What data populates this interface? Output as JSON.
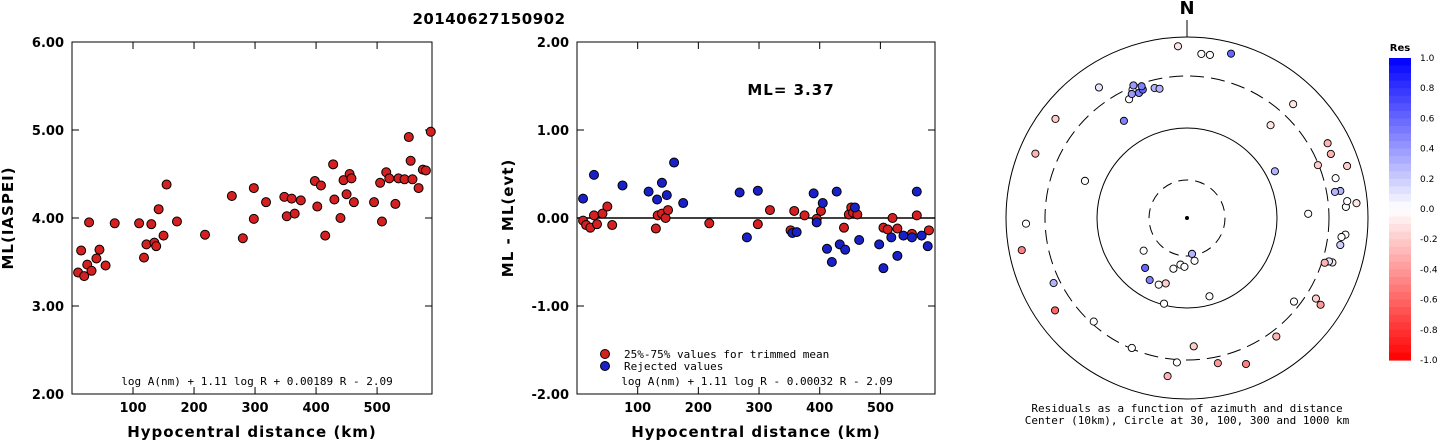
{
  "title": "20140627150902",
  "colors": {
    "red": "#d42020",
    "blue": "#1a20c8",
    "axis": "#000000"
  },
  "chart_data": [
    {
      "type": "scatter",
      "xlabel": "Hypocentral distance (km)",
      "ylabel": "ML(IASPEI)",
      "xlim": [
        0,
        590
      ],
      "ylim": [
        2.0,
        6.0
      ],
      "x_ticks": [
        "100",
        "200",
        "300",
        "400",
        "500"
      ],
      "y_ticks": [
        "2.00",
        "3.00",
        "4.00",
        "5.00",
        "6.00"
      ],
      "formula": "log A(nm) + 1.11 log R + 0.00189 R - 2.09",
      "series": [
        {
          "color": "red",
          "points": [
            [
              10,
              3.38
            ],
            [
              15,
              3.63
            ],
            [
              20,
              3.34
            ],
            [
              25,
              3.47
            ],
            [
              28,
              3.95
            ],
            [
              32,
              3.4
            ],
            [
              40,
              3.54
            ],
            [
              45,
              3.64
            ],
            [
              55,
              3.46
            ],
            [
              70,
              3.94
            ],
            [
              110,
              3.94
            ],
            [
              118,
              3.55
            ],
            [
              122,
              3.7
            ],
            [
              130,
              3.93
            ],
            [
              135,
              3.72
            ],
            [
              138,
              3.68
            ],
            [
              142,
              4.1
            ],
            [
              150,
              3.8
            ],
            [
              155,
              4.38
            ],
            [
              172,
              3.96
            ],
            [
              218,
              3.81
            ],
            [
              262,
              4.25
            ],
            [
              280,
              3.77
            ],
            [
              298,
              4.34
            ],
            [
              298,
              3.99
            ],
            [
              318,
              4.18
            ],
            [
              348,
              4.24
            ],
            [
              352,
              4.02
            ],
            [
              360,
              4.22
            ],
            [
              365,
              4.05
            ],
            [
              375,
              4.2
            ],
            [
              398,
              4.42
            ],
            [
              402,
              4.13
            ],
            [
              408,
              4.37
            ],
            [
              415,
              3.8
            ],
            [
              428,
              4.61
            ],
            [
              430,
              4.21
            ],
            [
              440,
              4.0
            ],
            [
              445,
              4.43
            ],
            [
              450,
              4.27
            ],
            [
              455,
              4.5
            ],
            [
              458,
              4.45
            ],
            [
              462,
              4.18
            ],
            [
              495,
              4.18
            ],
            [
              505,
              4.4
            ],
            [
              508,
              3.96
            ],
            [
              515,
              4.52
            ],
            [
              520,
              4.45
            ],
            [
              530,
              4.16
            ],
            [
              535,
              4.45
            ],
            [
              545,
              4.44
            ],
            [
              552,
              4.92
            ],
            [
              555,
              4.65
            ],
            [
              558,
              4.44
            ],
            [
              568,
              4.34
            ],
            [
              575,
              4.55
            ],
            [
              580,
              4.54
            ],
            [
              588,
              4.98
            ]
          ]
        }
      ]
    },
    {
      "type": "scatter",
      "xlabel": "Hypocentral distance (km)",
      "ylabel": "ML - ML(evt)",
      "xlim": [
        0,
        590
      ],
      "ylim": [
        -2.0,
        2.0
      ],
      "x_ticks": [
        "100",
        "200",
        "300",
        "400",
        "500"
      ],
      "y_ticks": [
        "-2.00",
        "-1.00",
        "0.00",
        "1.00",
        "2.00"
      ],
      "annotation": "ML= 3.37",
      "formula": "log A(nm) + 1.11 log R - 0.00032 R - 2.09",
      "legend": [
        {
          "label": "25%-75% values for trimmed mean",
          "color": "red"
        },
        {
          "label": "Rejected values",
          "color": "blue"
        }
      ],
      "series": [
        {
          "name": "25%-75% values for trimmed mean",
          "color": "red",
          "points": [
            [
              10,
              -0.03
            ],
            [
              15,
              -0.08
            ],
            [
              22,
              -0.11
            ],
            [
              28,
              0.03
            ],
            [
              33,
              -0.07
            ],
            [
              42,
              0.05
            ],
            [
              50,
              0.13
            ],
            [
              58,
              -0.08
            ],
            [
              130,
              -0.12
            ],
            [
              133,
              0.03
            ],
            [
              140,
              0.05
            ],
            [
              146,
              0.0
            ],
            [
              150,
              0.09
            ],
            [
              218,
              -0.06
            ],
            [
              298,
              -0.07
            ],
            [
              318,
              0.09
            ],
            [
              352,
              -0.14
            ],
            [
              358,
              0.08
            ],
            [
              375,
              0.03
            ],
            [
              395,
              -0.01
            ],
            [
              402,
              0.08
            ],
            [
              440,
              -0.11
            ],
            [
              448,
              0.04
            ],
            [
              452,
              0.12
            ],
            [
              455,
              0.06
            ],
            [
              462,
              0.04
            ],
            [
              505,
              -0.11
            ],
            [
              512,
              -0.13
            ],
            [
              520,
              0.0
            ],
            [
              528,
              -0.12
            ],
            [
              552,
              -0.18
            ],
            [
              560,
              0.03
            ],
            [
              580,
              -0.14
            ]
          ]
        },
        {
          "name": "Rejected values",
          "color": "blue",
          "points": [
            [
              10,
              0.22
            ],
            [
              28,
              0.49
            ],
            [
              75,
              0.37
            ],
            [
              118,
              0.3
            ],
            [
              132,
              0.21
            ],
            [
              140,
              0.4
            ],
            [
              148,
              0.26
            ],
            [
              160,
              0.63
            ],
            [
              175,
              0.17
            ],
            [
              268,
              0.29
            ],
            [
              280,
              -0.22
            ],
            [
              298,
              0.31
            ],
            [
              355,
              -0.17
            ],
            [
              362,
              -0.16
            ],
            [
              390,
              0.28
            ],
            [
              395,
              -0.05
            ],
            [
              405,
              0.17
            ],
            [
              412,
              -0.35
            ],
            [
              420,
              -0.5
            ],
            [
              428,
              0.3
            ],
            [
              433,
              -0.3
            ],
            [
              442,
              -0.36
            ],
            [
              458,
              0.12
            ],
            [
              465,
              -0.25
            ],
            [
              498,
              -0.3
            ],
            [
              505,
              -0.57
            ],
            [
              518,
              -0.22
            ],
            [
              528,
              -0.43
            ],
            [
              538,
              -0.2
            ],
            [
              552,
              -0.22
            ],
            [
              560,
              0.3
            ],
            [
              568,
              -0.2
            ],
            [
              578,
              -0.32
            ]
          ]
        }
      ]
    },
    {
      "type": "polar-scatter",
      "north_label": "N",
      "caption_line1": "Residuals as a function of azimuth and distance",
      "caption_line2": "Center (10km), Circle at 30, 100, 300 and 1000 km",
      "colorbar_title": "Res",
      "colorbar_ticks": [
        "1.0",
        "0.8",
        "0.6",
        "0.4",
        "0.2",
        "0.0",
        "-0.2",
        "-0.4",
        "-0.6",
        "-0.8",
        "-1.0"
      ],
      "stations": [
        {
          "az": 357,
          "r": 0.95,
          "res": -0.1
        },
        {
          "az": 5,
          "r": 0.91,
          "res": 0.0
        },
        {
          "az": 8,
          "r": 0.91,
          "res": 0.0
        },
        {
          "az": 15,
          "r": 0.94,
          "res": 0.6
        },
        {
          "az": 326,
          "r": 0.87,
          "res": 0.1
        },
        {
          "az": 337,
          "r": 0.77,
          "res": 0.0
        },
        {
          "az": 334,
          "r": 0.73,
          "res": 0.0
        },
        {
          "az": 336,
          "r": 0.75,
          "res": 0.4
        },
        {
          "az": 339,
          "r": 0.74,
          "res": 0.5
        },
        {
          "az": 341,
          "r": 0.75,
          "res": 0.6
        },
        {
          "az": 341,
          "r": 0.77,
          "res": 0.5
        },
        {
          "az": 338,
          "r": 0.79,
          "res": 0.4
        },
        {
          "az": 346,
          "r": 0.74,
          "res": 0.3
        },
        {
          "az": 348,
          "r": 0.73,
          "res": 0.3
        },
        {
          "az": 327,
          "r": 0.64,
          "res": 0.5
        },
        {
          "az": 307,
          "r": 0.91,
          "res": -0.2
        },
        {
          "az": 290,
          "r": 0.6,
          "res": 0.0
        },
        {
          "az": 43,
          "r": 0.86,
          "res": -0.1
        },
        {
          "az": 42,
          "r": 0.69,
          "res": -0.1
        },
        {
          "az": 62,
          "r": 0.55,
          "res": 0.3
        },
        {
          "az": 62,
          "r": 0.88,
          "res": -0.3
        },
        {
          "az": 66,
          "r": 0.87,
          "res": -0.3
        },
        {
          "az": 68,
          "r": 0.78,
          "res": -0.2
        },
        {
          "az": 72,
          "r": 0.93,
          "res": -0.2
        },
        {
          "az": 75,
          "r": 0.85,
          "res": 0.0
        },
        {
          "az": 80,
          "r": 0.86,
          "res": 0.3
        },
        {
          "az": 80,
          "r": 0.83,
          "res": 0.3
        },
        {
          "az": 86,
          "r": 0.88,
          "res": 0.0
        },
        {
          "az": 85,
          "r": 0.94,
          "res": -0.1
        },
        {
          "az": 84,
          "r": 0.89,
          "res": 0.0
        },
        {
          "az": 88,
          "r": 0.67,
          "res": 0.0
        },
        {
          "az": 96,
          "r": 0.88,
          "res": 0.0
        },
        {
          "az": 97,
          "r": 0.86,
          "res": 0.0
        },
        {
          "az": 100,
          "r": 0.86,
          "res": 0.2
        },
        {
          "az": 107,
          "r": 0.84,
          "res": -0.1
        },
        {
          "az": 107,
          "r": 0.82,
          "res": 0.1
        },
        {
          "az": 108,
          "r": 0.8,
          "res": -0.3
        },
        {
          "az": 122,
          "r": 0.84,
          "res": -0.2
        },
        {
          "az": 123,
          "r": 0.88,
          "res": -0.4
        },
        {
          "az": 128,
          "r": 0.75,
          "res": 0.0
        },
        {
          "az": 143,
          "r": 0.82,
          "res": -0.3
        },
        {
          "az": 158,
          "r": 0.87,
          "res": -0.5
        },
        {
          "az": 168,
          "r": 0.82,
          "res": -0.4
        },
        {
          "az": 177,
          "r": 0.71,
          "res": -0.2
        },
        {
          "az": 187,
          "r": 0.88,
          "res": -0.3
        },
        {
          "az": 184,
          "r": 0.8,
          "res": 0.0
        },
        {
          "az": 203,
          "r": 0.78,
          "res": 0.0
        },
        {
          "az": 222,
          "r": 0.77,
          "res": 0.0
        },
        {
          "az": 235,
          "r": 0.89,
          "res": -0.6
        },
        {
          "az": 244,
          "r": 0.82,
          "res": 0.3
        },
        {
          "az": 259,
          "r": 0.93,
          "res": -0.5
        },
        {
          "az": 268,
          "r": 0.89,
          "res": 0.0
        },
        {
          "az": 293,
          "r": 0.91,
          "res": -0.3
        },
        {
          "az": 195,
          "r": 0.49,
          "res": 0.0
        },
        {
          "az": 164,
          "r": 0.45,
          "res": 0.0
        },
        {
          "az": 203,
          "r": 0.4,
          "res": 0.0
        },
        {
          "az": 195,
          "r": 0.29,
          "res": 0.0
        },
        {
          "az": 188,
          "r": 0.26,
          "res": 0.0
        },
        {
          "az": 183,
          "r": 0.27,
          "res": 0.0
        },
        {
          "az": 172,
          "r": 0.2,
          "res": 0.3
        },
        {
          "az": 211,
          "r": 0.4,
          "res": 0.5
        },
        {
          "az": 220,
          "r": 0.36,
          "res": 0.6
        },
        {
          "az": 233,
          "r": 0.3,
          "res": 0.0
        },
        {
          "az": 198,
          "r": 0.38,
          "res": -0.2
        },
        {
          "az": 170,
          "r": 0.24,
          "res": 0.0
        }
      ]
    }
  ]
}
